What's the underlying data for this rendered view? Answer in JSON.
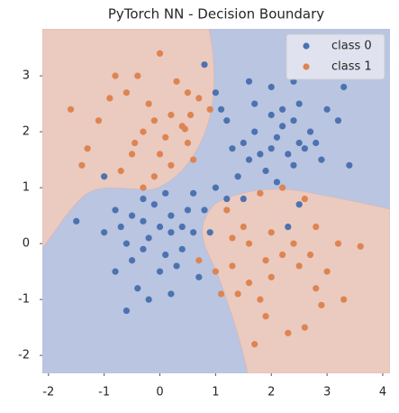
{
  "chart_data": {
    "type": "scatter",
    "title": "PyTorch NN - Decision Boundary",
    "xlim": [
      -2.11,
      4.13
    ],
    "ylim": [
      -2.32,
      3.84
    ],
    "xticks": [
      -2,
      -1,
      0,
      1,
      2,
      3,
      4
    ],
    "yticks": [
      -2,
      -1,
      0,
      1,
      2,
      3
    ],
    "legend": "upper right",
    "series": [
      {
        "name": "class 0",
        "color": "#4c72b0",
        "x": [
          1.7,
          2.0,
          2.2,
          2.4,
          2.5,
          1.5,
          1.6,
          1.8,
          2.1,
          2.3,
          2.7,
          2.8,
          3.0,
          3.3,
          3.4,
          3.2,
          2.0,
          1.6,
          2.4,
          0.8,
          1.0,
          1.1,
          1.2,
          1.0,
          1.2,
          1.4,
          1.9,
          2.1,
          2.4,
          2.0,
          1.3,
          2.6,
          1.7,
          2.5,
          2.2,
          2.9,
          2.3,
          2.5,
          1.5,
          -1.0,
          -0.8,
          -0.5,
          -0.3,
          0.0,
          0.2,
          0.5,
          -0.2,
          0.1,
          0.3,
          -0.5,
          -0.8,
          -1.0,
          -0.6,
          0.4,
          0.6,
          0.7,
          0.9,
          0.2,
          -0.6,
          -0.4,
          0.0,
          -1.5,
          -0.3,
          0.1,
          -0.7,
          0.6,
          0.8,
          -0.3,
          0.4,
          -0.2,
          0.2,
          -0.1
        ],
        "values": [
          2.0,
          2.3,
          2.4,
          2.2,
          1.8,
          1.8,
          1.5,
          1.6,
          1.9,
          1.6,
          2.0,
          1.8,
          2.4,
          2.8,
          1.4,
          2.2,
          2.8,
          2.9,
          2.9,
          3.2,
          2.7,
          2.4,
          2.2,
          1.0,
          0.8,
          1.2,
          1.3,
          1.1,
          1.4,
          1.7,
          1.7,
          1.7,
          2.5,
          2.5,
          2.1,
          1.5,
          0.3,
          0.7,
          0.8,
          1.2,
          0.6,
          0.5,
          0.4,
          0.3,
          0.5,
          0.6,
          0.1,
          -0.2,
          -0.4,
          -0.3,
          -0.5,
          0.2,
          0.0,
          -0.1,
          0.2,
          -0.6,
          0.2,
          -0.9,
          -1.2,
          -0.8,
          -0.5,
          0.4,
          0.8,
          0.9,
          0.3,
          0.9,
          0.6,
          -0.1,
          0.3,
          -1.0,
          0.2,
          0.7
        ]
      },
      {
        "name": "class 1",
        "color": "#dd8452",
        "x": [
          -1.6,
          -1.1,
          -1.3,
          -1.4,
          -0.8,
          -0.4,
          0.0,
          -0.6,
          -0.2,
          0.2,
          0.4,
          0.5,
          -0.3,
          -0.5,
          -0.1,
          0.2,
          -0.7,
          -0.3,
          0.6,
          0.9,
          0.5,
          -0.9,
          0.1,
          0.45,
          -0.1,
          0.3,
          -0.45,
          0.55,
          0.7,
          0.0,
          1.2,
          1.5,
          1.8,
          2.2,
          2.6,
          2.8,
          3.2,
          3.6,
          1.0,
          1.1,
          1.3,
          1.6,
          1.8,
          2.0,
          2.2,
          2.5,
          2.8,
          1.4,
          1.9,
          2.3,
          2.6,
          2.9,
          1.7,
          2.0,
          1.6,
          2.4,
          1.3,
          3.0,
          2.7,
          1.9,
          0.7,
          3.3
        ],
        "values": [
          2.4,
          2.2,
          1.7,
          1.4,
          3.0,
          3.0,
          3.4,
          2.7,
          2.5,
          2.3,
          2.1,
          1.8,
          2.0,
          1.6,
          1.2,
          1.4,
          1.3,
          1.0,
          1.5,
          2.4,
          2.7,
          2.6,
          1.9,
          2.05,
          2.2,
          2.9,
          1.8,
          2.3,
          2.6,
          1.6,
          0.6,
          0.3,
          0.9,
          1.0,
          0.8,
          0.3,
          0.0,
          -0.05,
          -0.5,
          -0.9,
          -0.4,
          -0.7,
          -1.0,
          -0.6,
          -0.2,
          -0.4,
          -0.8,
          -0.9,
          -1.3,
          -1.6,
          -1.5,
          -1.1,
          -1.8,
          0.2,
          0.0,
          0.0,
          0.1,
          -0.5,
          -0.2,
          -0.3,
          -0.3,
          -1.0
        ]
      }
    ]
  }
}
